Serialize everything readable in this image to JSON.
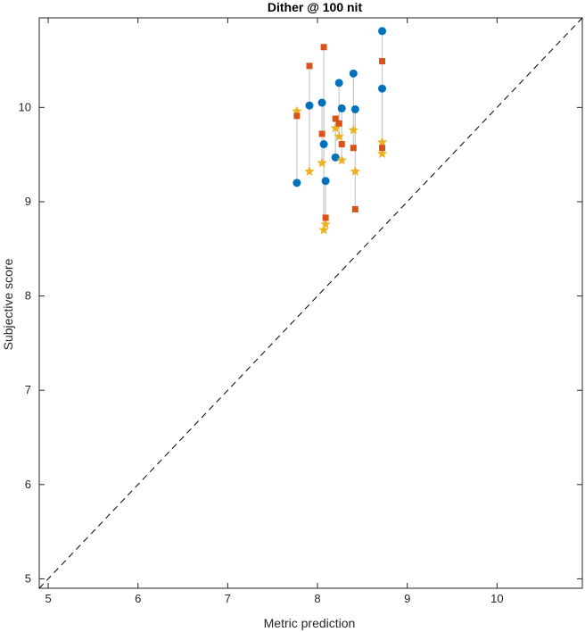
{
  "chart_data": {
    "type": "scatter",
    "title": "Dither @ 100 nit",
    "xlabel": "Metric prediction",
    "ylabel": "Subjective score",
    "xlim": [
      4.9,
      10.95
    ],
    "ylim": [
      4.9,
      10.95
    ],
    "xticks": [
      5,
      6,
      7,
      8,
      9,
      10
    ],
    "yticks": [
      5,
      6,
      7,
      8,
      9,
      10
    ],
    "grid": false,
    "box": true,
    "reference_line": {
      "style": "dashed",
      "from": [
        4.9,
        4.9
      ],
      "to": [
        10.95,
        10.95
      ],
      "color": "#000000"
    },
    "connector_color": "#c8c8c8",
    "groups": [
      {
        "x": 7.77,
        "circle": 9.2,
        "square": 9.91,
        "star": 9.96
      },
      {
        "x": 7.91,
        "circle": 10.02,
        "square": 10.44,
        "star": 9.32
      },
      {
        "x": 8.05,
        "circle": 10.05,
        "square": 9.72,
        "star": 9.41
      },
      {
        "x": 8.07,
        "circle": 9.61,
        "square": 10.64,
        "star": 8.7
      },
      {
        "x": 8.09,
        "circle": 9.22,
        "square": 8.83,
        "star": 8.76
      },
      {
        "x": 8.2,
        "circle": 9.47,
        "square": 9.88,
        "star": 9.78
      },
      {
        "x": 8.24,
        "circle": 10.26,
        "square": 9.83,
        "star": 9.69
      },
      {
        "x": 8.27,
        "circle": 9.99,
        "square": 9.61,
        "star": 9.44
      },
      {
        "x": 8.4,
        "circle": 10.36,
        "square": 9.57,
        "star": 9.76
      },
      {
        "x": 8.42,
        "circle": 9.98,
        "square": 8.92,
        "star": 9.32
      },
      {
        "x": 8.72,
        "circle": 10.81,
        "square": 10.49,
        "star": 9.51
      },
      {
        "x": 8.72,
        "circle": 10.2,
        "square": 9.57,
        "star": 9.63
      }
    ],
    "marker_colors": {
      "circle": "#0072bd",
      "square": "#d95319",
      "star": "#edb120"
    }
  }
}
